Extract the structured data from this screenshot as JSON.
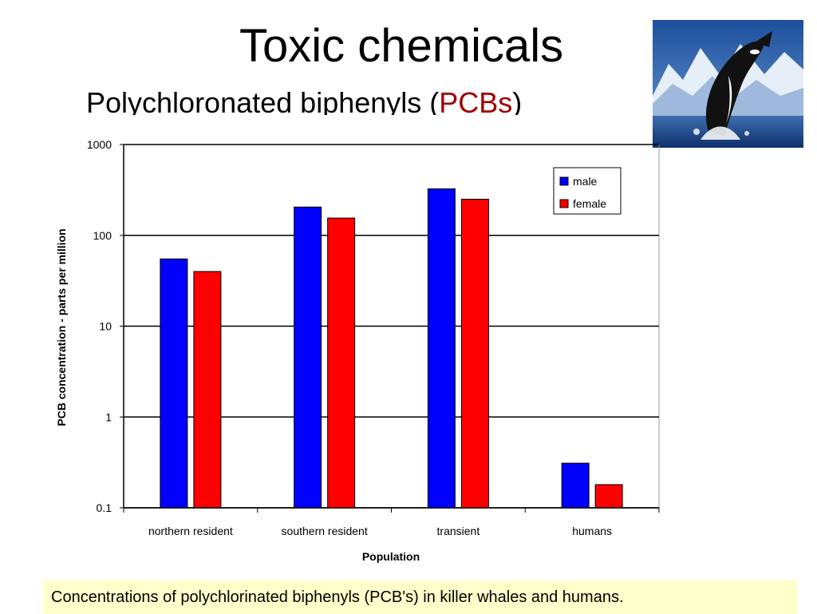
{
  "slide": {
    "title": "Toxic chemicals",
    "subtitle_prefix": "Polychloronated biphenyls (",
    "subtitle_accent": "PCBs",
    "subtitle_suffix": ")",
    "caption": "Concentrations of polychlorinated biphenyls (PCB's) in killer whales and humans."
  },
  "colors": {
    "accent": "#a00000",
    "male": "#0000ff",
    "female": "#ff0000",
    "caption_bg": "#ffffcc"
  },
  "image": {
    "icon": "orca-photo-icon"
  },
  "chart_data": {
    "type": "bar",
    "yscale": "log",
    "ylim": [
      0.1,
      1000
    ],
    "yticks": [
      "0.1",
      "1",
      "10",
      "100",
      "1000"
    ],
    "ylabel": "PCB concentration - parts per million",
    "xlabel": "Population",
    "categories": [
      "northern resident",
      "southern resident",
      "transient",
      "humans"
    ],
    "series": [
      {
        "name": "male",
        "values": [
          55,
          205,
          325,
          0.31
        ]
      },
      {
        "name": "female",
        "values": [
          40,
          155,
          250,
          0.18
        ]
      }
    ],
    "legend": "top-right",
    "grid": true
  }
}
